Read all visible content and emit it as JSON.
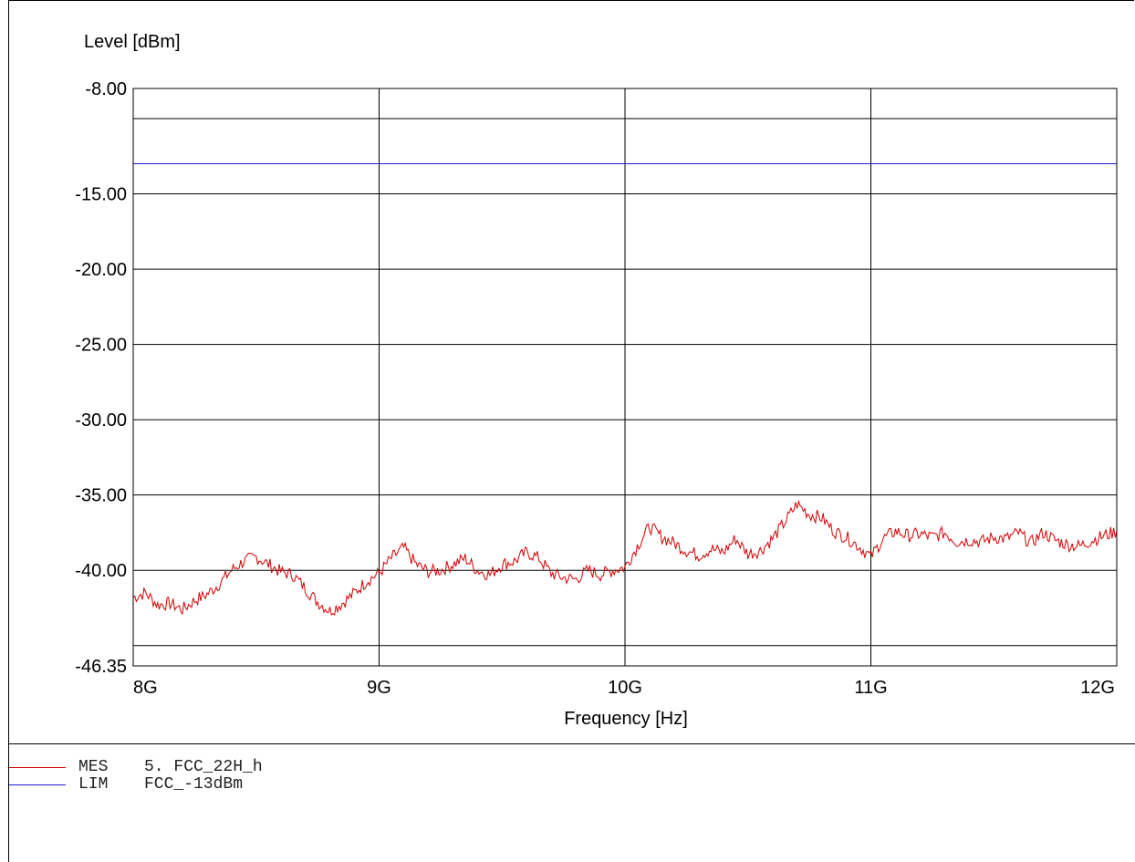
{
  "chart_data": {
    "type": "line",
    "ylabel": "Level [dBm]",
    "xlabel": "Frequency [Hz]",
    "ylim": [
      -46.35,
      -8.0
    ],
    "xlim": [
      8000000000,
      12000000000
    ],
    "y_tick_labels": [
      {
        "value": -8.0,
        "label": "-8.00"
      },
      {
        "value": -15.0,
        "label": "-15.00"
      },
      {
        "value": -20.0,
        "label": "-20.00"
      },
      {
        "value": -25.0,
        "label": "-25.00"
      },
      {
        "value": -30.0,
        "label": "-30.00"
      },
      {
        "value": -35.0,
        "label": "-35.00"
      },
      {
        "value": -40.0,
        "label": "-40.00"
      },
      {
        "value": -46.35,
        "label": "-46.35"
      }
    ],
    "y_gridlines": [
      -8.0,
      -10.0,
      -15.0,
      -20.0,
      -25.0,
      -30.0,
      -35.0,
      -40.0,
      -45.0
    ],
    "x_ticks": [
      {
        "value": 8000000000,
        "label": "8G"
      },
      {
        "value": 9000000000,
        "label": "9G"
      },
      {
        "value": 10000000000,
        "label": "10G"
      },
      {
        "value": 11000000000,
        "label": "11G"
      },
      {
        "value": 12000000000,
        "label": "12G"
      }
    ],
    "grid": true,
    "series": [
      {
        "name": "MES 5. FCC_22H_h",
        "color": "#d40000",
        "x": [
          8000000000,
          8050000000,
          8100000000,
          8150000000,
          8200000000,
          8250000000,
          8300000000,
          8350000000,
          8400000000,
          8450000000,
          8500000000,
          8550000000,
          8600000000,
          8650000000,
          8700000000,
          8750000000,
          8800000000,
          8850000000,
          8900000000,
          8950000000,
          9000000000,
          9050000000,
          9100000000,
          9150000000,
          9200000000,
          9250000000,
          9300000000,
          9350000000,
          9400000000,
          9450000000,
          9500000000,
          9550000000,
          9600000000,
          9650000000,
          9700000000,
          9750000000,
          9800000000,
          9850000000,
          9900000000,
          9950000000,
          10000000000,
          10050000000,
          10100000000,
          10150000000,
          10200000000,
          10250000000,
          10300000000,
          10350000000,
          10400000000,
          10450000000,
          10500000000,
          10550000000,
          10600000000,
          10650000000,
          10700000000,
          10750000000,
          10800000000,
          10850000000,
          10900000000,
          10950000000,
          11000000000,
          11050000000,
          11100000000,
          11150000000,
          11200000000,
          11250000000,
          11300000000,
          11350000000,
          11400000000,
          11450000000,
          11500000000,
          11550000000,
          11600000000,
          11650000000,
          11700000000,
          11750000000,
          11800000000,
          11850000000,
          11900000000,
          11950000000,
          12000000000
        ],
        "y": [
          -41.8,
          -41.5,
          -42.3,
          -42.2,
          -42.6,
          -42.0,
          -41.6,
          -40.9,
          -40.0,
          -39.4,
          -39.1,
          -39.6,
          -40.1,
          -40.3,
          -41.2,
          -42.1,
          -42.7,
          -42.2,
          -41.5,
          -40.7,
          -40.2,
          -39.2,
          -38.5,
          -39.6,
          -40.1,
          -40.0,
          -39.6,
          -39.2,
          -40.0,
          -40.3,
          -39.6,
          -39.4,
          -38.8,
          -39.2,
          -40.2,
          -40.5,
          -40.6,
          -40.0,
          -40.3,
          -40.0,
          -39.8,
          -38.4,
          -37.1,
          -37.8,
          -38.2,
          -38.7,
          -39.0,
          -38.6,
          -38.8,
          -37.9,
          -38.9,
          -38.7,
          -37.9,
          -36.8,
          -35.6,
          -36.3,
          -36.5,
          -37.4,
          -37.8,
          -38.4,
          -39.1,
          -37.9,
          -37.4,
          -37.7,
          -37.6,
          -37.8,
          -37.5,
          -38.1,
          -38.0,
          -38.1,
          -37.8,
          -37.9,
          -37.5,
          -38.2,
          -37.5,
          -38.0,
          -38.3,
          -38.4,
          -38.0,
          -37.7,
          -37.4
        ]
      },
      {
        "name": "LIM FCC_-13dBm",
        "color": "#1c1cd6",
        "x": [
          8000000000,
          12000000000
        ],
        "y": [
          -13.0,
          -13.0
        ]
      }
    ]
  },
  "legend": {
    "rows": [
      {
        "tag": "MES",
        "name": "5. FCC_22H_h",
        "color": "#d40000"
      },
      {
        "tag": "LIM",
        "name": "FCC_-13dBm",
        "color": "#1c1cd6"
      }
    ]
  }
}
